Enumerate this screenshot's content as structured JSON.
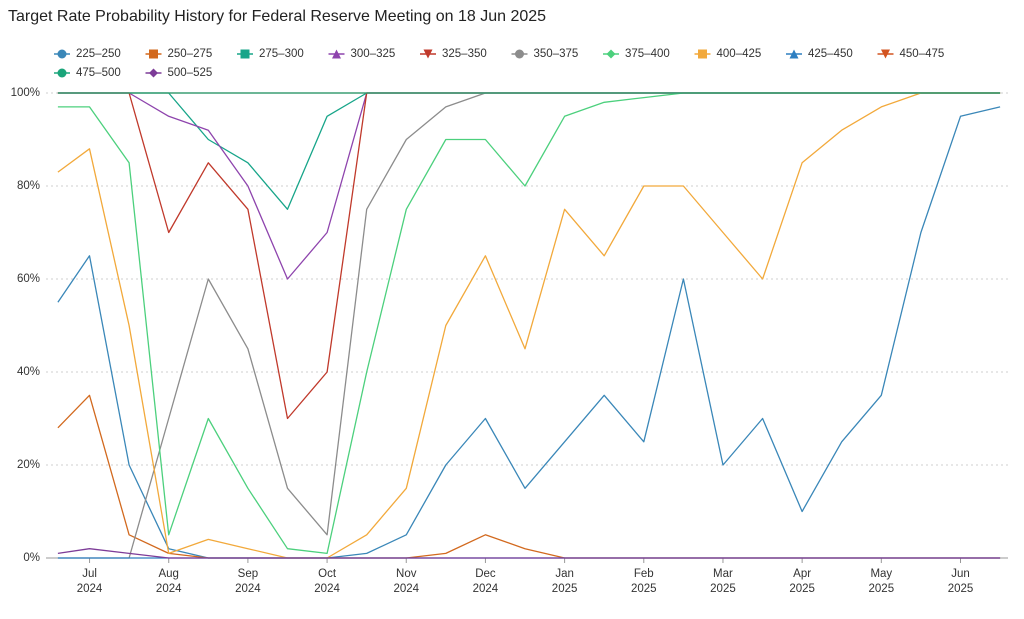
{
  "chart_data": {
    "type": "line",
    "title": "Target Rate Probability History for Federal Reserve Meeting on 18 Jun 2025",
    "x": [
      -0.4,
      0,
      0.5,
      1,
      1.5,
      2,
      2.5,
      3,
      3.5,
      4,
      4.5,
      5,
      5.5,
      6,
      6.5,
      7,
      7.5,
      8,
      8.5,
      9,
      9.5,
      10,
      10.5,
      11,
      11.5
    ],
    "xlim": [
      -0.55,
      11.6
    ],
    "xticks": [
      {
        "value": 0,
        "label": "Jul\n2024"
      },
      {
        "value": 1,
        "label": "Aug\n2024"
      },
      {
        "value": 2,
        "label": "Sep\n2024"
      },
      {
        "value": 3,
        "label": "Oct\n2024"
      },
      {
        "value": 4,
        "label": "Nov\n2024"
      },
      {
        "value": 5,
        "label": "Dec\n2024"
      },
      {
        "value": 6,
        "label": "Jan\n2025"
      },
      {
        "value": 7,
        "label": "Feb\n2025"
      },
      {
        "value": 8,
        "label": "Mar\n2025"
      },
      {
        "value": 9,
        "label": "Apr\n2025"
      },
      {
        "value": 10,
        "label": "May\n2025"
      },
      {
        "value": 11,
        "label": "Jun\n2025"
      }
    ],
    "ylim": [
      0,
      100
    ],
    "yticks": [
      {
        "value": 0,
        "label": "0%"
      },
      {
        "value": 20,
        "label": "20%"
      },
      {
        "value": 40,
        "label": "40%"
      },
      {
        "value": 60,
        "label": "60%"
      },
      {
        "value": 80,
        "label": "80%"
      },
      {
        "value": 100,
        "label": "100%"
      }
    ],
    "grid": true,
    "series": [
      {
        "name": "225–250",
        "color": "#3a87b8",
        "marker": "circle",
        "values": [
          55,
          65,
          20,
          2,
          0,
          0,
          0,
          0,
          1,
          5,
          20,
          30,
          15,
          25,
          35,
          25,
          60,
          20,
          30,
          10,
          25,
          35,
          70,
          95,
          97
        ]
      },
      {
        "name": "250–275",
        "color": "#d2691e",
        "marker": "square",
        "values": [
          28,
          35,
          5,
          1,
          0,
          0,
          0,
          0,
          0,
          0,
          1,
          5,
          2,
          0,
          0,
          0,
          0,
          0,
          0,
          0,
          0,
          0,
          0,
          0,
          0
        ]
      },
      {
        "name": "275–300",
        "color": "#17a589",
        "marker": "square",
        "values": [
          100,
          100,
          100,
          100,
          90,
          85,
          75,
          95,
          100,
          100,
          100,
          100,
          100,
          100,
          100,
          100,
          100,
          100,
          100,
          100,
          100,
          100,
          100,
          100,
          100
        ]
      },
      {
        "name": "300–325",
        "color": "#8e44ad",
        "marker": "triangle",
        "values": [
          100,
          100,
          100,
          95,
          92,
          80,
          60,
          70,
          100,
          100,
          100,
          100,
          100,
          100,
          100,
          100,
          100,
          100,
          100,
          100,
          100,
          100,
          100,
          100,
          100
        ]
      },
      {
        "name": "325–350",
        "color": "#c0392b",
        "marker": "triangle-down",
        "values": [
          100,
          100,
          100,
          70,
          85,
          75,
          30,
          40,
          100,
          100,
          100,
          100,
          100,
          100,
          100,
          100,
          100,
          100,
          100,
          100,
          100,
          100,
          100,
          100,
          100
        ]
      },
      {
        "name": "350–375",
        "color": "#8c8c8c",
        "marker": "circle",
        "values": [
          0,
          0,
          0,
          30,
          60,
          45,
          15,
          5,
          75,
          90,
          97,
          100,
          100,
          100,
          100,
          100,
          100,
          100,
          100,
          100,
          100,
          100,
          100,
          100,
          100
        ]
      },
      {
        "name": "375–400",
        "color": "#4cd07d",
        "marker": "diamond",
        "values": [
          97,
          97,
          85,
          5,
          30,
          15,
          2,
          1,
          40,
          75,
          90,
          90,
          80,
          95,
          98,
          99,
          100,
          100,
          100,
          100,
          100,
          100,
          100,
          100,
          100
        ]
      },
      {
        "name": "400–425",
        "color": "#f2a93b",
        "marker": "square",
        "values": [
          83,
          88,
          50,
          1,
          4,
          2,
          0,
          0,
          5,
          15,
          50,
          65,
          45,
          75,
          65,
          80,
          80,
          70,
          60,
          85,
          92,
          97,
          100,
          100,
          100
        ]
      },
      {
        "name": "425–450",
        "color": "#2e7fc1",
        "marker": "triangle",
        "values": [
          0,
          0,
          0,
          0,
          0,
          0,
          0,
          0,
          0,
          0,
          0,
          0,
          0,
          0,
          0,
          0,
          0,
          0,
          0,
          0,
          0,
          0,
          0,
          0,
          0
        ]
      },
      {
        "name": "450–475",
        "color": "#d35420",
        "marker": "triangle-down",
        "values": [
          100,
          100,
          100,
          100,
          100,
          100,
          100,
          100,
          100,
          100,
          100,
          100,
          100,
          100,
          100,
          100,
          100,
          100,
          100,
          100,
          100,
          100,
          100,
          100,
          100
        ]
      },
      {
        "name": "475–500",
        "color": "#1aa57a",
        "marker": "circle",
        "values": [
          100,
          100,
          100,
          100,
          100,
          100,
          100,
          100,
          100,
          100,
          100,
          100,
          100,
          100,
          100,
          100,
          100,
          100,
          100,
          100,
          100,
          100,
          100,
          100,
          100
        ]
      },
      {
        "name": "500–525",
        "color": "#7d3c98",
        "marker": "diamond",
        "values": [
          1,
          2,
          1,
          0,
          0,
          0,
          0,
          0,
          0,
          0,
          0,
          0,
          0,
          0,
          0,
          0,
          0,
          0,
          0,
          0,
          0,
          0,
          0,
          0,
          0
        ]
      }
    ]
  }
}
